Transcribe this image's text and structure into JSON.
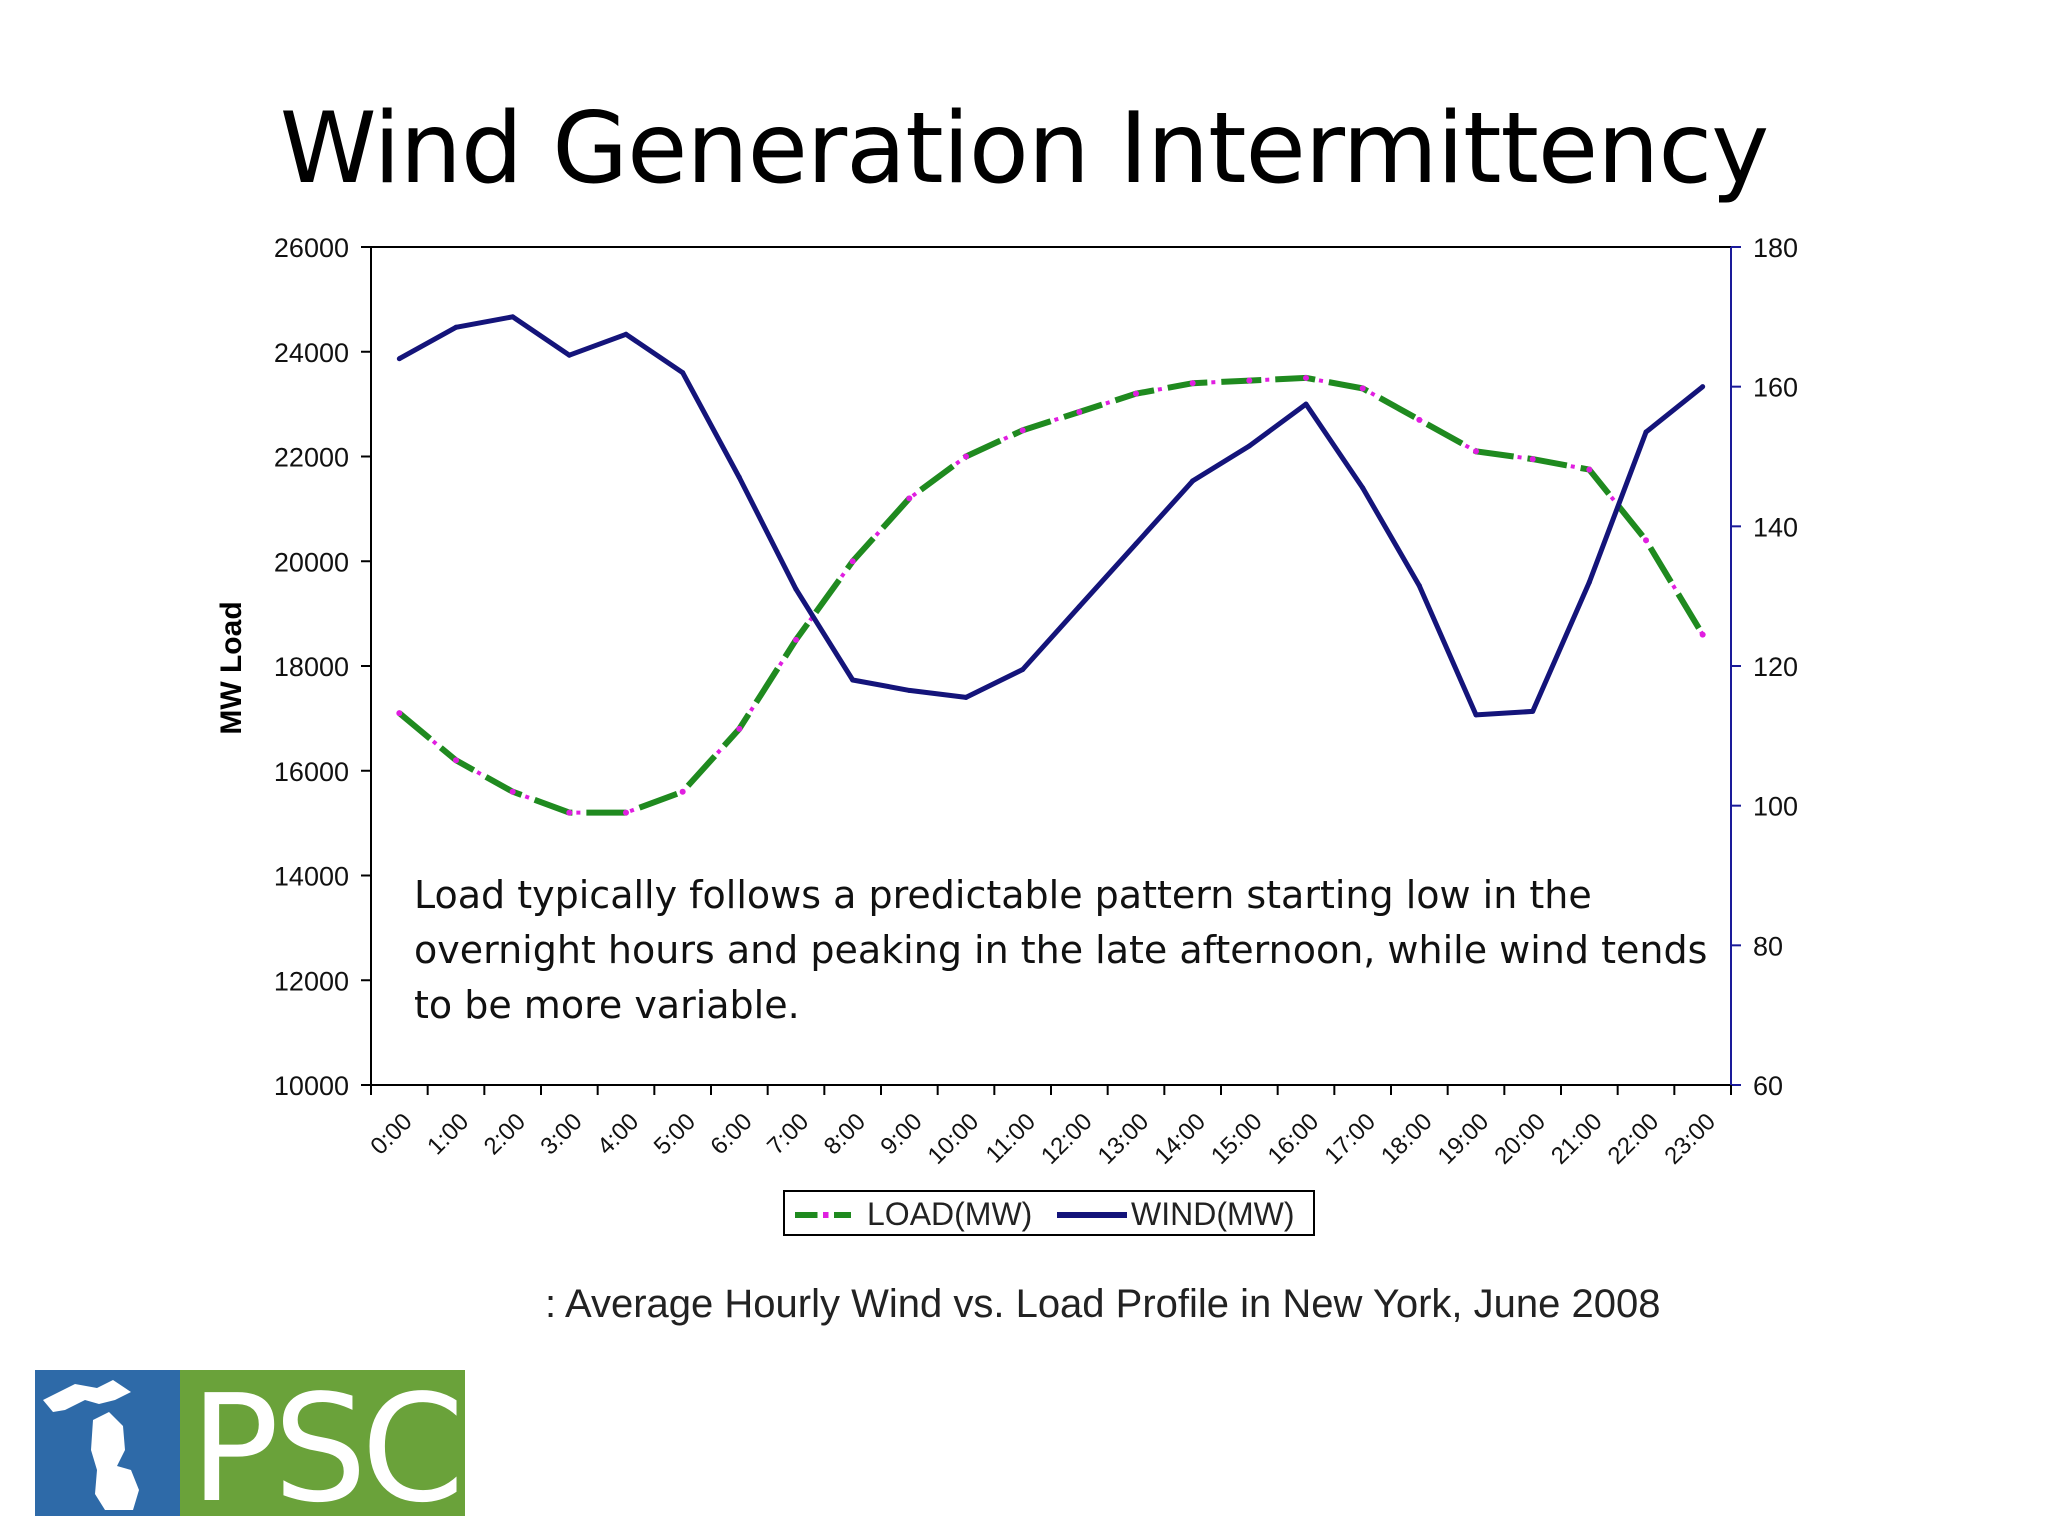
{
  "slide": {
    "title": "Wind Generation Intermittency",
    "annotation": "Load typically follows a predictable pattern starting low in the overnight hours and peaking in the late afternoon, while wind tends to be more variable.",
    "caption": ": Average Hourly Wind vs. Load Profile in New York, June 2008",
    "logo_text": "PSC"
  },
  "colors": {
    "load": "#1f8a1f",
    "load_accent": "#e01ee0",
    "wind": "#14147a",
    "left_axis": "#000000",
    "right_axis": "#1a1a99",
    "logo_blue": "#2e6aa8",
    "logo_green": "#6aa23a"
  },
  "chart_data": {
    "type": "line",
    "title": "",
    "ylabel": "MW Load",
    "y2label": "",
    "xlabel": "",
    "categories": [
      "0:00",
      "1:00",
      "2:00",
      "3:00",
      "4:00",
      "5:00",
      "6:00",
      "7:00",
      "8:00",
      "9:00",
      "10:00",
      "11:00",
      "12:00",
      "13:00",
      "14:00",
      "15:00",
      "16:00",
      "17:00",
      "18:00",
      "19:00",
      "20:00",
      "21:00",
      "22:00",
      "23:00"
    ],
    "ylim": [
      10000,
      26000
    ],
    "yticks": [
      10000,
      12000,
      14000,
      16000,
      18000,
      20000,
      22000,
      24000,
      26000
    ],
    "y2lim": [
      60,
      180
    ],
    "y2ticks": [
      60,
      80,
      100,
      120,
      140,
      160,
      180
    ],
    "legend_position": "bottom",
    "grid": false,
    "series": [
      {
        "name": "LOAD(MW)",
        "axis": "left",
        "style": "dashed",
        "values": [
          17100,
          16200,
          15600,
          15200,
          15200,
          15600,
          16800,
          18500,
          20000,
          21200,
          22000,
          22500,
          22850,
          23200,
          23400,
          23450,
          23500,
          23300,
          22700,
          22100,
          21950,
          21750,
          20400,
          18600
        ]
      },
      {
        "name": "WIND(MW)",
        "axis": "right",
        "style": "solid",
        "values": [
          164,
          168.5,
          170,
          164.5,
          167.5,
          162,
          147,
          131,
          118,
          116.5,
          115.5,
          119.5,
          128.5,
          137.5,
          146.5,
          151.5,
          157.5,
          145.5,
          131.5,
          113,
          113.5,
          132,
          153.5,
          160
        ]
      }
    ]
  }
}
